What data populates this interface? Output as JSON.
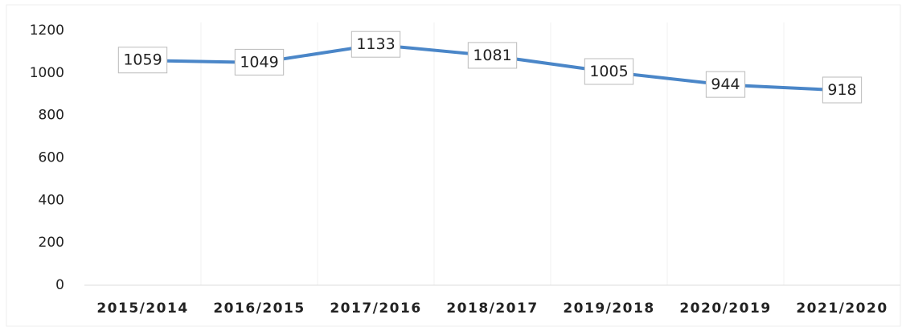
{
  "chart_data": {
    "type": "line",
    "categories": [
      "2015/2014",
      "2016/2015",
      "2017/2016",
      "2018/2017",
      "2019/2018",
      "2020/2019",
      "2021/2020"
    ],
    "values": [
      1059,
      1049,
      1133,
      1081,
      1005,
      944,
      918
    ],
    "color": "#4a86c8",
    "ylim": [
      0,
      1200
    ],
    "yticks": [
      0,
      200,
      400,
      600,
      800,
      1000,
      1200
    ]
  }
}
